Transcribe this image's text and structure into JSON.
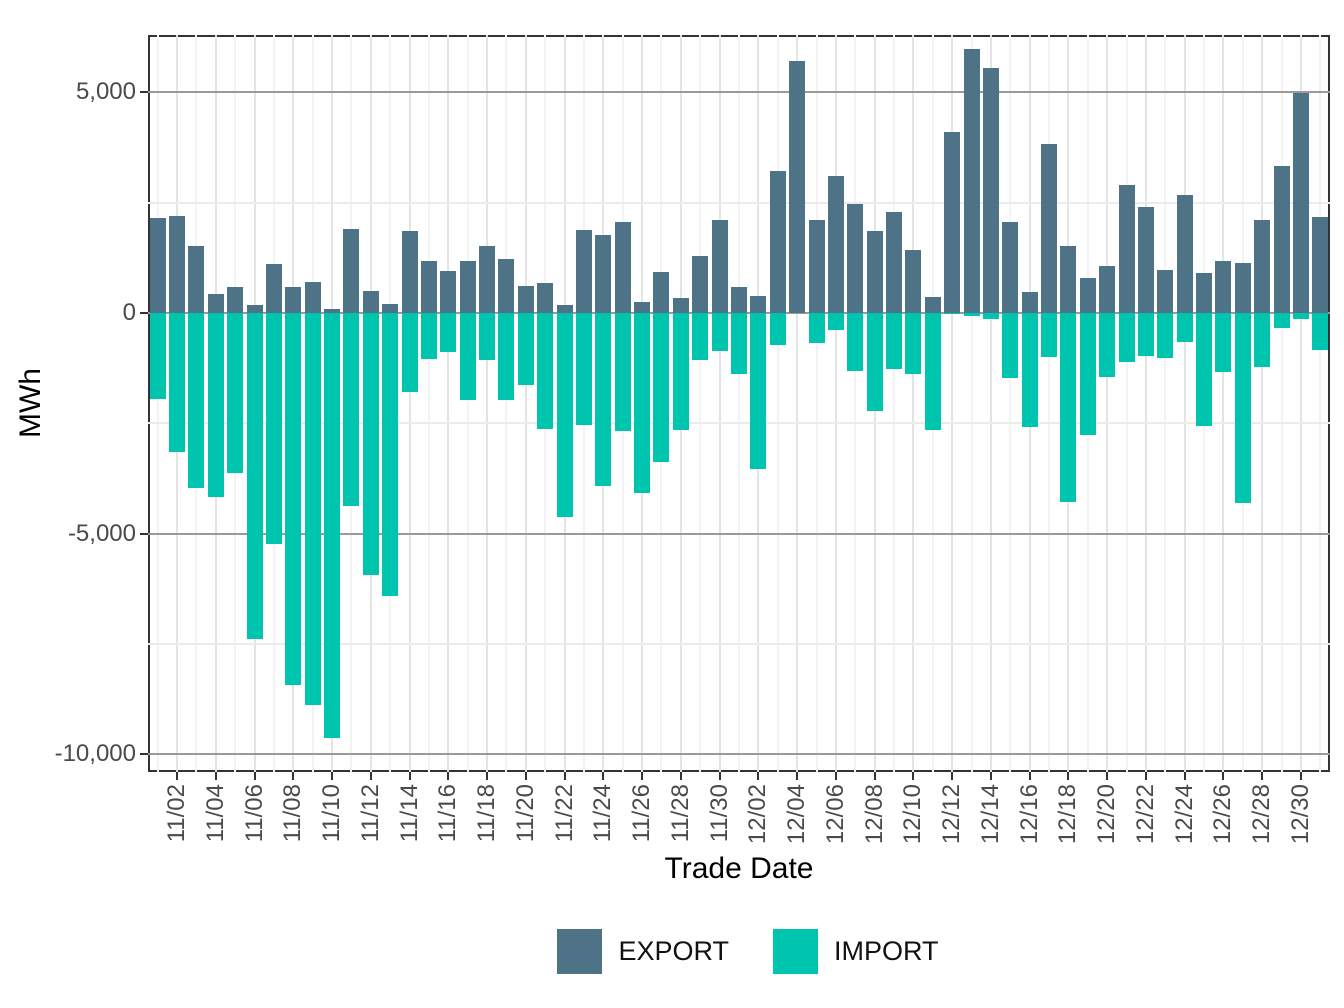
{
  "chart": {
    "y_axis": {
      "title": "MWh",
      "ticks": [
        {
          "label": "5,000",
          "value": 5000
        },
        {
          "label": "0",
          "value": 0
        },
        {
          "label": "-5,000",
          "value": -5000
        },
        {
          "label": "-10,000",
          "value": -10000
        }
      ],
      "minor_values": [
        2500,
        -2500,
        -7500
      ]
    },
    "x_axis": {
      "title": "Trade Date",
      "tick_labels": [
        "11/02",
        "11/04",
        "11/06",
        "11/08",
        "11/10",
        "11/12",
        "11/14",
        "11/16",
        "11/18",
        "11/20",
        "11/22",
        "11/24",
        "11/26",
        "11/28",
        "11/30",
        "12/02",
        "12/04",
        "12/06",
        "12/08",
        "12/10",
        "12/12",
        "12/14",
        "12/16",
        "12/18",
        "12/20",
        "12/22",
        "12/24",
        "12/26",
        "12/28",
        "12/30"
      ]
    },
    "legend": [
      {
        "label": "EXPORT",
        "color": "#4E7286"
      },
      {
        "label": "IMPORT",
        "color": "#00C5AE"
      }
    ]
  },
  "chart_data": {
    "type": "bar",
    "title": "",
    "xlabel": "Trade Date",
    "ylabel": "MWh",
    "ylim": [
      -10400,
      6300
    ],
    "grid": true,
    "legend_position": "bottom",
    "categories": [
      "11/01",
      "11/02",
      "11/03",
      "11/04",
      "11/05",
      "11/06",
      "11/07",
      "11/08",
      "11/09",
      "11/10",
      "11/11",
      "11/12",
      "11/13",
      "11/14",
      "11/15",
      "11/16",
      "11/17",
      "11/18",
      "11/19",
      "11/20",
      "11/21",
      "11/22",
      "11/23",
      "11/24",
      "11/25",
      "11/26",
      "11/27",
      "11/28",
      "11/29",
      "11/30",
      "12/01",
      "12/02",
      "12/03",
      "12/04",
      "12/05",
      "12/06",
      "12/07",
      "12/08",
      "12/09",
      "12/10",
      "12/11",
      "12/12",
      "12/13",
      "12/14",
      "12/15",
      "12/16",
      "12/17",
      "12/18",
      "12/19",
      "12/20",
      "12/21",
      "12/22",
      "12/23",
      "12/24",
      "12/25",
      "12/26",
      "12/27",
      "12/28",
      "12/29",
      "12/30",
      "12/31"
    ],
    "series": [
      {
        "name": "EXPORT",
        "color": "#4E7286",
        "values": [
          2150,
          2190,
          1520,
          430,
          600,
          190,
          1110,
          590,
          710,
          80,
          1900,
          500,
          200,
          1850,
          1180,
          960,
          1190,
          1530,
          1220,
          620,
          690,
          190,
          1890,
          1760,
          2070,
          240,
          920,
          330,
          1290,
          2100,
          590,
          390,
          3210,
          5700,
          2100,
          3110,
          2470,
          1860,
          2290,
          1430,
          370,
          4100,
          5980,
          5550,
          2060,
          480,
          3830,
          1520,
          790,
          1060,
          2890,
          2410,
          980,
          2680,
          900,
          1190,
          1140,
          2100,
          3330,
          4980,
          2170
        ]
      },
      {
        "name": "IMPORT",
        "color": "#00C5AE",
        "values": [
          -1950,
          -3150,
          -3970,
          -4170,
          -3630,
          -7380,
          -5230,
          -8420,
          -8880,
          -9630,
          -4370,
          -5930,
          -6420,
          -1800,
          -1050,
          -880,
          -1980,
          -1060,
          -1980,
          -1640,
          -2620,
          -4630,
          -2540,
          -3930,
          -2680,
          -4080,
          -3370,
          -2640,
          -1060,
          -870,
          -1390,
          -3540,
          -720,
          0,
          -680,
          -390,
          -1310,
          -2220,
          -1270,
          -1390,
          -2640,
          -30,
          -60,
          -130,
          -1470,
          -2580,
          -1000,
          -4290,
          -2770,
          -1440,
          -1100,
          -970,
          -1020,
          -660,
          -2560,
          -1330,
          -4310,
          -1220,
          -350,
          -140,
          -840
        ]
      }
    ]
  }
}
